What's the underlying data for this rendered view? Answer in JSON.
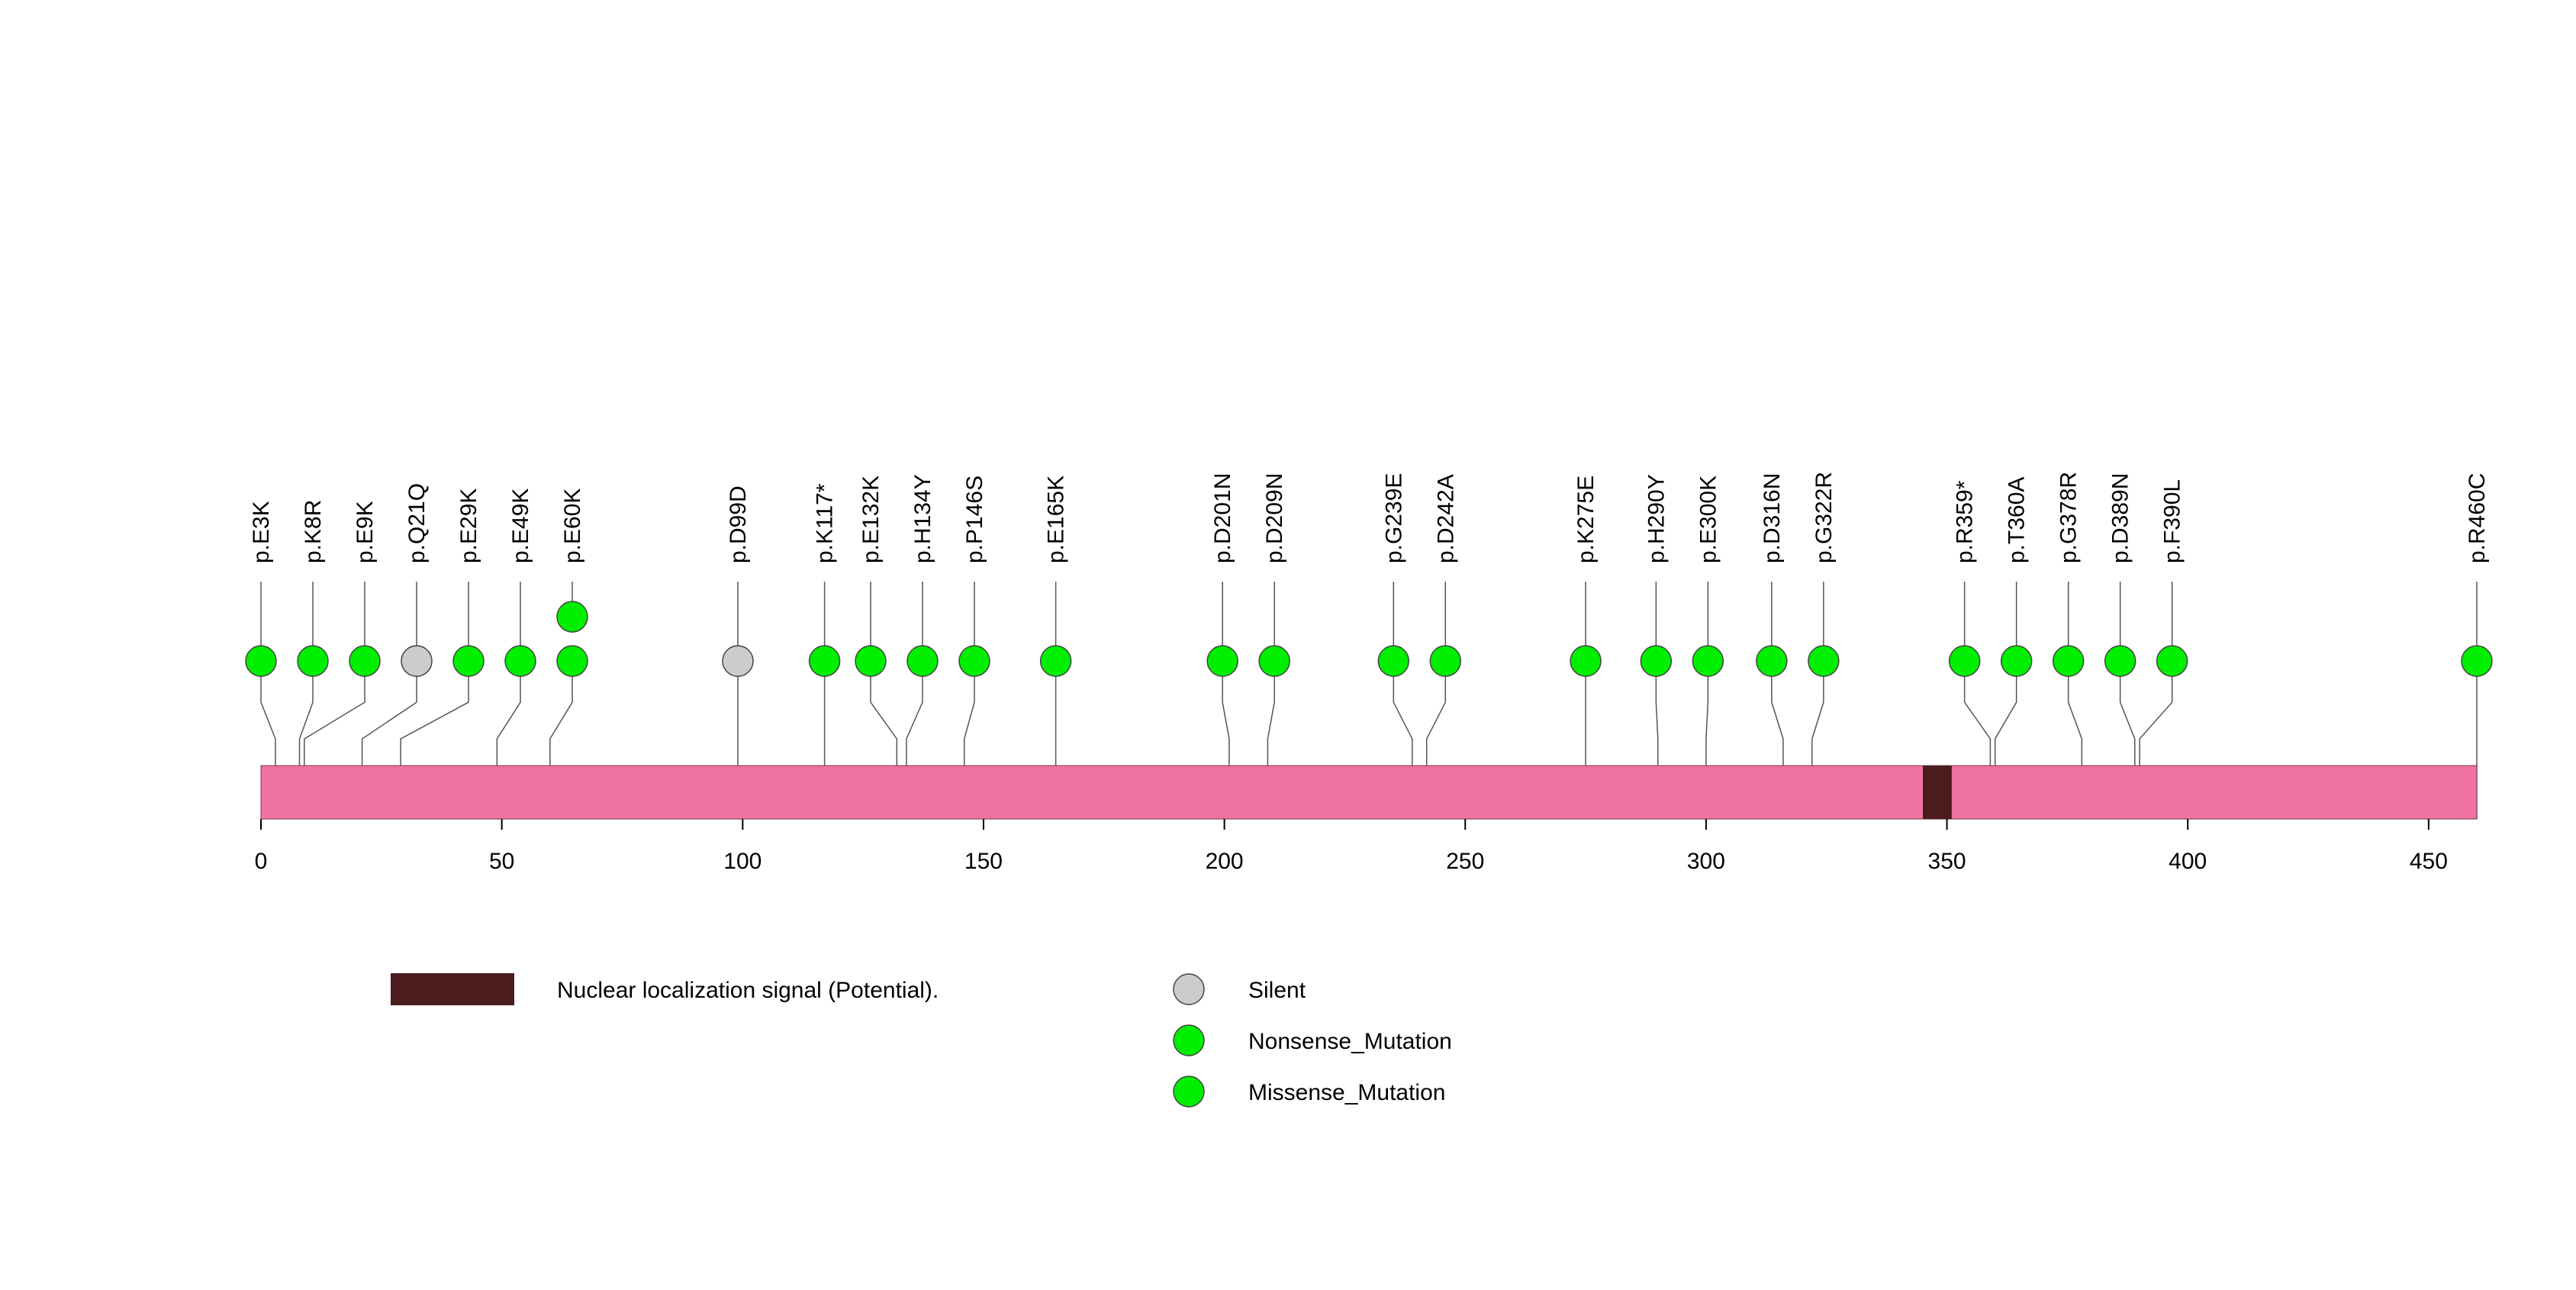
{
  "chart_data": {
    "type": "lollipop",
    "title": "",
    "xlabel": "",
    "ylabel": "",
    "protein_length": 460,
    "xlim": [
      0,
      460
    ],
    "x_ticks": [
      0,
      50,
      100,
      150,
      200,
      250,
      300,
      350,
      400,
      450
    ],
    "protein_color": "#ee72a2",
    "domains": [
      {
        "name": "Nuclear localization signal (Potential).",
        "start": 345,
        "end": 351,
        "color": "#4a1c1e"
      }
    ],
    "mutations": [
      {
        "label": "p.E3K",
        "position": 3,
        "type": "Missense_Mutation",
        "count": 1
      },
      {
        "label": "p.K8R",
        "position": 8,
        "type": "Missense_Mutation",
        "count": 1
      },
      {
        "label": "p.E9K",
        "position": 9,
        "type": "Missense_Mutation",
        "count": 1
      },
      {
        "label": "p.Q21Q",
        "position": 21,
        "type": "Silent",
        "count": 1
      },
      {
        "label": "p.E29K",
        "position": 29,
        "type": "Missense_Mutation",
        "count": 1
      },
      {
        "label": "p.E49K",
        "position": 49,
        "type": "Missense_Mutation",
        "count": 1
      },
      {
        "label": "p.E60K",
        "position": 60,
        "type": "Missense_Mutation",
        "count": 2
      },
      {
        "label": "p.D99D",
        "position": 99,
        "type": "Silent",
        "count": 1
      },
      {
        "label": "p.K117*",
        "position": 117,
        "type": "Nonsense_Mutation",
        "count": 1
      },
      {
        "label": "p.E132K",
        "position": 132,
        "type": "Missense_Mutation",
        "count": 1
      },
      {
        "label": "p.H134Y",
        "position": 134,
        "type": "Missense_Mutation",
        "count": 1
      },
      {
        "label": "p.P146S",
        "position": 146,
        "type": "Missense_Mutation",
        "count": 1
      },
      {
        "label": "p.E165K",
        "position": 165,
        "type": "Missense_Mutation",
        "count": 1
      },
      {
        "label": "p.D201N",
        "position": 201,
        "type": "Missense_Mutation",
        "count": 1
      },
      {
        "label": "p.D209N",
        "position": 209,
        "type": "Missense_Mutation",
        "count": 1
      },
      {
        "label": "p.G239E",
        "position": 239,
        "type": "Missense_Mutation",
        "count": 1
      },
      {
        "label": "p.D242A",
        "position": 242,
        "type": "Missense_Mutation",
        "count": 1
      },
      {
        "label": "p.K275E",
        "position": 275,
        "type": "Missense_Mutation",
        "count": 1
      },
      {
        "label": "p.H290Y",
        "position": 290,
        "type": "Missense_Mutation",
        "count": 1
      },
      {
        "label": "p.E300K",
        "position": 300,
        "type": "Missense_Mutation",
        "count": 1
      },
      {
        "label": "p.D316N",
        "position": 316,
        "type": "Missense_Mutation",
        "count": 1
      },
      {
        "label": "p.G322R",
        "position": 322,
        "type": "Missense_Mutation",
        "count": 1
      },
      {
        "label": "p.R359*",
        "position": 359,
        "type": "Nonsense_Mutation",
        "count": 1
      },
      {
        "label": "p.T360A",
        "position": 360,
        "type": "Missense_Mutation",
        "count": 1
      },
      {
        "label": "p.G378R",
        "position": 378,
        "type": "Missense_Mutation",
        "count": 1
      },
      {
        "label": "p.D389N",
        "position": 389,
        "type": "Missense_Mutation",
        "count": 1
      },
      {
        "label": "p.F390L",
        "position": 390,
        "type": "Missense_Mutation",
        "count": 1
      },
      {
        "label": "p.R460C",
        "position": 460,
        "type": "Missense_Mutation",
        "count": 1
      }
    ],
    "legend": {
      "domain_entries": [
        {
          "label": "Nuclear localization signal (Potential).",
          "color": "#4a1c1e"
        }
      ],
      "mutation_entries": [
        {
          "label": "Silent",
          "color": "#cccccc"
        },
        {
          "label": "Nonsense_Mutation",
          "color": "#00ee00"
        },
        {
          "label": "Missense_Mutation",
          "color": "#00ee00"
        }
      ]
    }
  }
}
